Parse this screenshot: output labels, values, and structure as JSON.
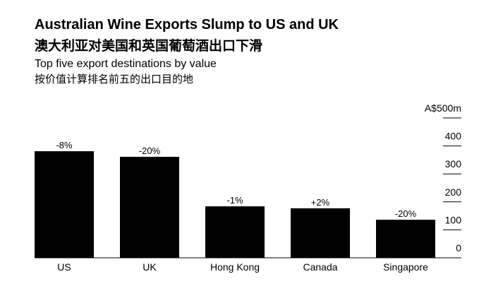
{
  "chart_data": {
    "type": "bar",
    "title": "Australian Wine Exports Slump to US and UK",
    "title_zh": "澳大利亚对美国和英国葡萄酒出口下滑",
    "subtitle": "Top five export destinations by value",
    "subtitle_zh": "按价值计算排名前五的出口目的地",
    "categories": [
      "US",
      "UK",
      "Hong Kong",
      "Canada",
      "Singapore"
    ],
    "values": [
      381,
      361,
      184,
      177,
      136
    ],
    "changes": [
      "-8%",
      "-20%",
      "-1%",
      "+2%",
      "-20%"
    ],
    "color": "#000000",
    "ylim": [
      0,
      500
    ],
    "yticks": [
      0,
      100,
      200,
      300,
      400,
      {
        "value": 500,
        "label": "A$500m"
      }
    ],
    "grid": true
  }
}
